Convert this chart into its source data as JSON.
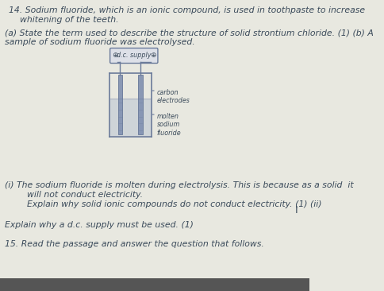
{
  "background_color": "#e8e8e0",
  "text_color": "#3a4a5a",
  "title_line1": "14. Sodium fluoride, which is an ionic compound, is used in toothpaste to increase",
  "title_line2": "    whitening of the teeth.",
  "para_a": "(a) State the term used to describe the structure of solid strontium chloride. (1) (b) A",
  "para_a2": "sample of sodium fluoride was electrolysed.",
  "diagram_label_supply": "d.c. supply",
  "diagram_label_carbon": "carbon",
  "diagram_label_electrodes": "electrodes",
  "diagram_label_molten": "molten",
  "diagram_label_sodium": "sodium",
  "diagram_label_fluoride": "fluoride",
  "para_i_line1": "(i) The sodium fluoride is molten during electrolysis. This is because as a solid  it",
  "para_i_line2": "        will not conduct electricity.",
  "para_i_line3": "        Explain why solid ionic compounds do not conduct electricity. (1) (ii)",
  "para_ii": "Explain why a d.c. supply must be used. (1)",
  "para_15": "15. Read the passage and answer the question that follows.",
  "diagram_color": "#8a9ab5",
  "diagram_outline": "#6a7a9a",
  "supply_box_color": "#dde0e8",
  "electrode_fill": "#8090b0",
  "liquid_color": "#b0bcd0",
  "cursor_char": "I",
  "fs_main": 7.8,
  "fs_diagram": 5.8
}
